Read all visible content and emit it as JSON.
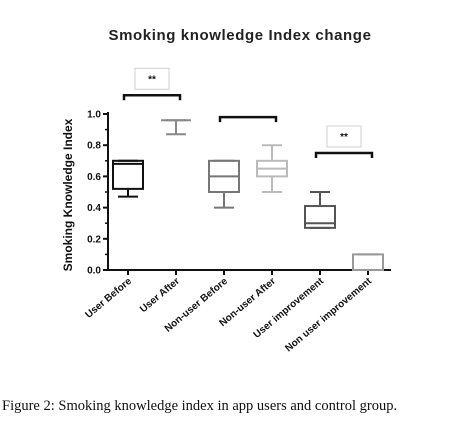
{
  "caption": {
    "figure_label": "Figure 2:",
    "text": " Smoking knowledge index in app users and control group."
  },
  "chart_data": {
    "type": "box",
    "title": "Smoking knowledge Index change",
    "xlabel": "",
    "ylabel": "Smoking Knowledge Index",
    "ylim": [
      0,
      1.0
    ],
    "yticks": [
      0.0,
      0.2,
      0.4,
      0.6,
      0.8,
      1.0
    ],
    "ytick_labels": [
      "0.0",
      "0.2",
      "0.4",
      "0.6",
      "0.8",
      "1.0"
    ],
    "grid": false,
    "legend": "none",
    "categories": [
      "User Before",
      "User After",
      "Non-user Before",
      "Non-user After",
      "User improvement",
      "Non user improvement"
    ],
    "boxes": [
      {
        "category": "User Before",
        "min": 0.47,
        "q1": 0.52,
        "median": 0.68,
        "q3": 0.7,
        "max": 0.7,
        "color": "#111111"
      },
      {
        "category": "User After",
        "min": 0.87,
        "q1": 0.96,
        "median": 0.96,
        "q3": 0.96,
        "max": 0.96,
        "color": "#888888"
      },
      {
        "category": "Non-user Before",
        "min": 0.4,
        "q1": 0.5,
        "median": 0.6,
        "q3": 0.7,
        "max": 0.7,
        "color": "#777777"
      },
      {
        "category": "Non-user After",
        "min": 0.5,
        "q1": 0.6,
        "median": 0.65,
        "q3": 0.7,
        "max": 0.8,
        "color": "#bbbbbb"
      },
      {
        "category": "User improvement",
        "min": 0.27,
        "q1": 0.27,
        "median": 0.3,
        "q3": 0.41,
        "max": 0.5,
        "color": "#555555"
      },
      {
        "category": "Non user improvement",
        "min": 0.0,
        "q1": 0.0,
        "median": 0.0,
        "q3": 0.1,
        "max": 0.1,
        "color": "#999999"
      }
    ],
    "significance": [
      {
        "from": 0,
        "to": 1,
        "y": 1.12,
        "label": "**"
      },
      {
        "from": 2,
        "to": 3,
        "y": 0.98,
        "label": ""
      },
      {
        "from": 4,
        "to": 5,
        "y": 0.75,
        "label": "**"
      }
    ]
  }
}
